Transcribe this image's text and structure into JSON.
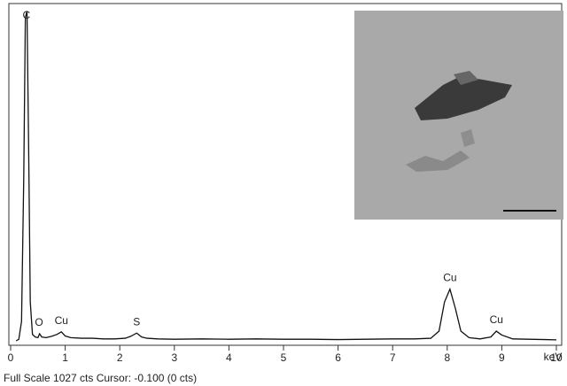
{
  "chart_data": {
    "type": "line",
    "x": [
      0.1,
      0.15,
      0.2,
      0.24,
      0.27,
      0.3,
      0.33,
      0.36,
      0.4,
      0.45,
      0.5,
      0.53,
      0.57,
      0.65,
      0.75,
      0.85,
      0.93,
      1.0,
      1.1,
      1.3,
      1.5,
      1.7,
      1.9,
      2.1,
      2.2,
      2.31,
      2.4,
      2.5,
      2.7,
      3.0,
      3.5,
      4.0,
      4.5,
      5.0,
      5.5,
      6.0,
      6.5,
      7.0,
      7.4,
      7.7,
      7.85,
      7.95,
      8.05,
      8.15,
      8.25,
      8.4,
      8.6,
      8.8,
      8.9,
      9.0,
      9.2,
      9.5,
      9.8,
      10.0
    ],
    "values": [
      0,
      5,
      60,
      500,
      1000,
      1020,
      600,
      120,
      20,
      12,
      10,
      22,
      12,
      10,
      14,
      20,
      28,
      15,
      10,
      8,
      8,
      6,
      6,
      8,
      14,
      24,
      12,
      8,
      6,
      5,
      6,
      5,
      6,
      5,
      5,
      4,
      5,
      6,
      6,
      8,
      30,
      120,
      160,
      100,
      30,
      10,
      6,
      12,
      30,
      18,
      6,
      5,
      4,
      3
    ],
    "color": "#111111",
    "xlim": [
      0,
      10
    ],
    "xticks": [
      0,
      1,
      2,
      3,
      4,
      5,
      6,
      7,
      8,
      9,
      10
    ],
    "ylim": [
      0,
      1027
    ],
    "x_label": "keV",
    "annotations": [
      {
        "text": "C",
        "x": 0.29
      },
      {
        "text": "O",
        "x": 0.52
      },
      {
        "text": "Cu",
        "x": 0.93
      },
      {
        "text": "S",
        "x": 2.31
      },
      {
        "text": "Cu",
        "x": 8.05
      },
      {
        "text": "Cu",
        "x": 8.9
      }
    ],
    "footer": "Full Scale 1027 cts Cursor: -0.100  (0 cts)"
  }
}
